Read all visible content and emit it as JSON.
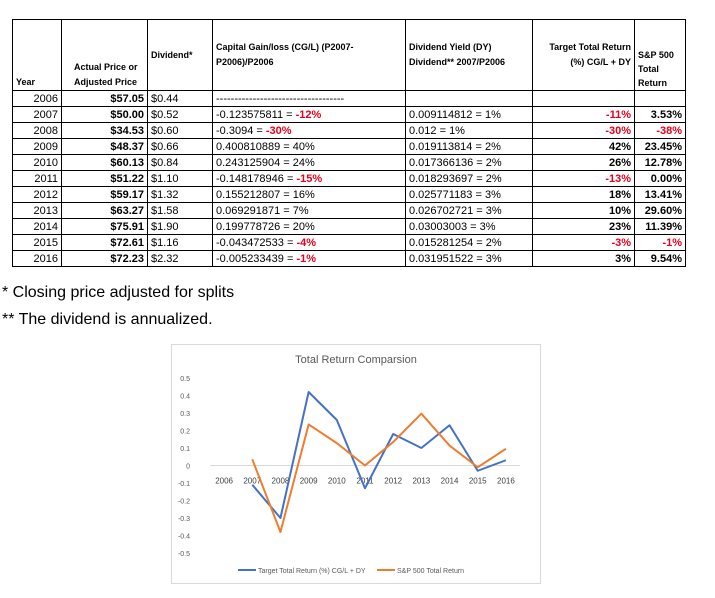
{
  "table": {
    "headers": {
      "year": "Year",
      "price_l1": "Actual Price or",
      "price_l2": "Adjusted Price",
      "dividend": "Dividend*",
      "cg_l1": "Capital Gain/loss (CG/L) (P2007-",
      "cg_l2": "P2006)/P2006",
      "dy_l1": "Dividend Yield (DY)",
      "dy_l2": "Dividend** 2007/P2006",
      "ttr_l1": "Target Total Return",
      "ttr_l2": "(%) CG/L + DY",
      "sp_l1": "S&P 500",
      "sp_l2": "Total",
      "sp_l3": "Return"
    },
    "rows": [
      {
        "year": "2006",
        "price": "$57.05",
        "dividend": "$0.44",
        "cg_value": "-----------------------------------",
        "cg_pct": "",
        "cg_neg": false,
        "dy": "",
        "ttr": "",
        "ttr_neg": false,
        "sp": "",
        "sp_neg": false
      },
      {
        "year": "2007",
        "price": "$50.00",
        "dividend": "$0.52",
        "cg_value": "-0.123575811 = ",
        "cg_pct": "-12%",
        "cg_neg": true,
        "dy": "0.009114812 = 1%",
        "ttr": "-11%",
        "ttr_neg": true,
        "sp": "3.53%",
        "sp_neg": false
      },
      {
        "year": "2008",
        "price": "$34.53",
        "dividend": "$0.60",
        "cg_value": "-0.3094 = ",
        "cg_pct": "-30%",
        "cg_neg": true,
        "dy": "0.012 = 1%",
        "ttr": "-30%",
        "ttr_neg": true,
        "sp": "-38%",
        "sp_neg": true
      },
      {
        "year": "2009",
        "price": "$48.37",
        "dividend": "$0.66",
        "cg_value": "0.400810889 = ",
        "cg_pct": "40%",
        "cg_neg": false,
        "dy": "0.019113814 = 2%",
        "ttr": "42%",
        "ttr_neg": false,
        "sp": "23.45%",
        "sp_neg": false
      },
      {
        "year": "2010",
        "price": "$60.13",
        "dividend": "$0.84",
        "cg_value": "0.243125904 = ",
        "cg_pct": "24%",
        "cg_neg": false,
        "dy": "0.017366136 = 2%",
        "ttr": "26%",
        "ttr_neg": false,
        "sp": "12.78%",
        "sp_neg": false
      },
      {
        "year": "2011",
        "price": "$51.22",
        "dividend": "$1.10",
        "cg_value": "-0.148178946 = ",
        "cg_pct": "-15%",
        "cg_neg": true,
        "dy": "0.018293697 = 2%",
        "ttr": "-13%",
        "ttr_neg": true,
        "sp": "0.00%",
        "sp_neg": false
      },
      {
        "year": "2012",
        "price": "$59.17",
        "dividend": "$1.32",
        "cg_value": "0.155212807 = ",
        "cg_pct": "16%",
        "cg_neg": false,
        "dy": "0.025771183 = 3%",
        "ttr": "18%",
        "ttr_neg": false,
        "sp": "13.41%",
        "sp_neg": false
      },
      {
        "year": "2013",
        "price": "$63.27",
        "dividend": "$1.58",
        "cg_value": "0.069291871 = ",
        "cg_pct": "7%",
        "cg_neg": false,
        "dy": "0.026702721 = 3%",
        "ttr": "10%",
        "ttr_neg": false,
        "sp": "29.60%",
        "sp_neg": false
      },
      {
        "year": "2014",
        "price": "$75.91",
        "dividend": "$1.90",
        "cg_value": "0.199778726 = ",
        "cg_pct": "20%",
        "cg_neg": false,
        "dy": "0.03003003 = 3%",
        "ttr": "23%",
        "ttr_neg": false,
        "sp": "11.39%",
        "sp_neg": false
      },
      {
        "year": "2015",
        "price": "$72.61",
        "dividend": "$1.16",
        "cg_value": "-0.043472533 = ",
        "cg_pct": "-4%",
        "cg_neg": true,
        "dy": "0.015281254 = 2%",
        "ttr": "-3%",
        "ttr_neg": true,
        "sp": "-1%",
        "sp_neg": true
      },
      {
        "year": "2016",
        "price": "$72.23",
        "dividend": "$2.32",
        "cg_value": "-0.005233439 = ",
        "cg_pct": "-1%",
        "cg_neg": true,
        "dy": "0.031951522 = 3%",
        "ttr": "3%",
        "ttr_neg": false,
        "sp": "9.54%",
        "sp_neg": false
      }
    ]
  },
  "notes": {
    "note1": "* Closing price adjusted for splits",
    "note2": "** The dividend is annualized."
  },
  "colors": {
    "negative": "#e8001c",
    "series1": "#4472c4",
    "series2": "#ed7d31"
  },
  "chart_data": {
    "type": "line",
    "title": "Total Return Comparsion",
    "x": [
      "2006",
      "2007",
      "2008",
      "2009",
      "2010",
      "2011",
      "2012",
      "2013",
      "2014",
      "2015",
      "2016"
    ],
    "yticks": [
      "0.5",
      "0.4",
      "0.3",
      "0.2",
      "0.1",
      "0",
      "-0.1",
      "-0.2",
      "-0.3",
      "-0.4",
      "-0.5"
    ],
    "ylim": [
      -0.5,
      0.5
    ],
    "grid": false,
    "legend_position": "bottom",
    "series": [
      {
        "name": "Target Total Return (%) CG/L + DY",
        "color": "#4472c4",
        "x": [
          "2007",
          "2008",
          "2009",
          "2010",
          "2011",
          "2012",
          "2013",
          "2014",
          "2015",
          "2016"
        ],
        "values": [
          -0.11,
          -0.3,
          0.42,
          0.26,
          -0.13,
          0.18,
          0.1,
          0.23,
          -0.03,
          0.03
        ]
      },
      {
        "name": "S&P 500 Total Return",
        "color": "#ed7d31",
        "x": [
          "2007",
          "2008",
          "2009",
          "2010",
          "2011",
          "2012",
          "2013",
          "2014",
          "2015",
          "2016"
        ],
        "values": [
          0.0353,
          -0.38,
          0.2345,
          0.1278,
          0.0,
          0.1341,
          0.296,
          0.1139,
          -0.01,
          0.0954
        ]
      }
    ]
  }
}
